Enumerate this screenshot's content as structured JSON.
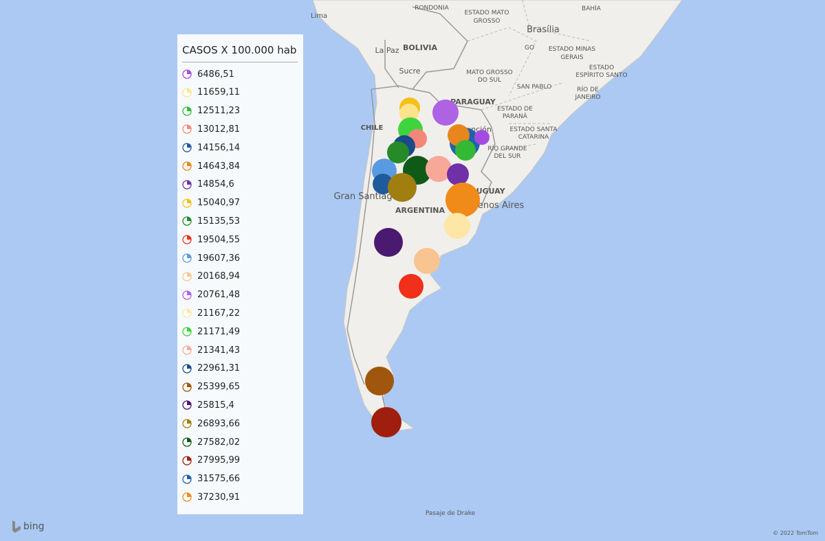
{
  "legend": {
    "title": "CASOS X 100.000 hab",
    "items": [
      {
        "label": "6486,51",
        "color": "#a54ce0"
      },
      {
        "label": "11659,11",
        "color": "#fde38a"
      },
      {
        "label": "12511,23",
        "color": "#35b935"
      },
      {
        "label": "13012,81",
        "color": "#f5877a"
      },
      {
        "label": "14156,14",
        "color": "#1f5a9c"
      },
      {
        "label": "14643,84",
        "color": "#e8861e"
      },
      {
        "label": "14854,6",
        "color": "#7030a8"
      },
      {
        "label": "15040,97",
        "color": "#f5c018"
      },
      {
        "label": "15135,53",
        "color": "#268a28"
      },
      {
        "label": "19504,55",
        "color": "#f0301a"
      },
      {
        "label": "19607,36",
        "color": "#5a9ae0"
      },
      {
        "label": "20168,94",
        "color": "#f8c490"
      },
      {
        "label": "20761,48",
        "color": "#ae62e4"
      },
      {
        "label": "21167,22",
        "color": "#fde6a6"
      },
      {
        "label": "21171,49",
        "color": "#3ed43e"
      },
      {
        "label": "21341,43",
        "color": "#f8a898"
      },
      {
        "label": "22961,31",
        "color": "#1a4a8a"
      },
      {
        "label": "25399,65",
        "color": "#a0560c"
      },
      {
        "label": "25815,4",
        "color": "#4a1a70"
      },
      {
        "label": "26893,66",
        "color": "#a07e10"
      },
      {
        "label": "27582,02",
        "color": "#105a18"
      },
      {
        "label": "27995,99",
        "color": "#a01e0e"
      },
      {
        "label": "31575,66",
        "color": "#2062aa"
      },
      {
        "label": "37230,91",
        "color": "#f08a18"
      }
    ]
  },
  "map": {
    "labels": [
      "Lima",
      "RONDONIA",
      "ESTADO MATO",
      "GROSSO",
      "BAHÍA",
      "Brasília",
      "BOLIVIA",
      "La Paz",
      "GO",
      "ESTADO MINAS",
      "GERAIS",
      "Sucre",
      "MATO GROSSO",
      "DO SUL",
      "ESTADO",
      "ESPÍRITO SANTO",
      "SAN PABLO",
      "RÍO DE",
      "JANEIRO",
      "PARAGUAY",
      "ESTADO DE",
      "PARANÁ",
      "Asunción",
      "ESTADO SANTA",
      "CATARINA",
      "RÍO GRANDE",
      "DEL SUR",
      "CHILE",
      "Gran Santiago",
      "ARGENTINA",
      "URUGUAY",
      "Buenos Aires",
      "Pasaje de Drake"
    ],
    "brand": "bing",
    "copyright": "© 2022 TomTom"
  }
}
